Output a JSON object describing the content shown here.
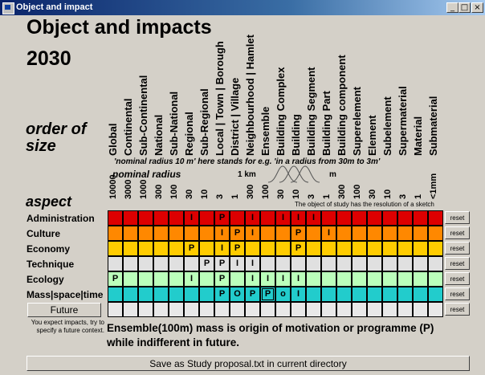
{
  "window": {
    "title": "Object and impact",
    "min": "_",
    "max": "□",
    "close": "×"
  },
  "heading": "Object and impacts",
  "year": "2030",
  "order_of_size_line1": "order of",
  "order_of_size_line2": "size",
  "aspect_label": "aspect",
  "scale_names": [
    "Global",
    "Continental",
    "Sub-Continental",
    "National",
    "Sub-National",
    "Regional",
    "Sub-Regional",
    "Local | Town | Borough",
    "District | Village",
    "Neighbourhood | Hamlet",
    "Ensemble",
    "Building Complex",
    "Building",
    "Building Segment",
    "Building Part",
    "Building component",
    "Superelement",
    "Element",
    "Subelement",
    "Supermaterial",
    "Material",
    "Submaterial"
  ],
  "note": "'nominal radius 10 m' here stands for e.g. 'in a radius from 30m to 3m'",
  "nominal_radius_label": "nominal radius",
  "unit_km": "1 km",
  "unit_m": "m",
  "radii": [
    "10000",
    "3000",
    "1000",
    "300",
    "100",
    "30",
    "10",
    "3",
    "1",
    "300",
    "100",
    "30",
    "10",
    "3",
    "1",
    "300",
    "100",
    "30",
    "10",
    "3",
    "1",
    "<1mm"
  ],
  "sketch_note": "The object of study has the resolution of a sketch",
  "colors": {
    "Administration": "#dd0000",
    "Culture": "#ff8800",
    "Economy": "#ffcc00",
    "Technique": "#e0e0e0",
    "Ecology": "#bbffbb",
    "Mass|space|time": "#22cccc",
    "blank": "#e8e8e8"
  },
  "rows": [
    {
      "label": "Administration",
      "marks": {
        "5": "I",
        "7": "P",
        "9": "I",
        "11": "I",
        "12": "I",
        "13": "I"
      },
      "reset": "reset"
    },
    {
      "label": "Culture",
      "marks": {
        "7": "I",
        "8": "P",
        "9": "I",
        "12": "P",
        "14": "I"
      },
      "reset": "reset"
    },
    {
      "label": "Economy",
      "marks": {
        "5": "P",
        "7": "I",
        "8": "P",
        "12": "P"
      },
      "reset": "reset"
    },
    {
      "label": "Technique",
      "marks": {
        "6": "P",
        "7": "P",
        "8": "I",
        "9": "I"
      },
      "reset": "reset"
    },
    {
      "label": "Ecology",
      "marks": {
        "0": "P",
        "5": "I",
        "7": "P",
        "9": "I",
        "10": "I",
        "11": "I",
        "12": "I"
      },
      "reset": "reset"
    },
    {
      "label": "Mass|space|time",
      "marks": {
        "7": "P",
        "8": "O",
        "9": "P",
        "10": "P",
        "11": "o",
        "12": "I"
      },
      "selected": 10,
      "reset": "reset"
    },
    {
      "label": "",
      "marks": {},
      "reset": "reset"
    }
  ],
  "future_button": "Future",
  "future_hint": "You expect impacts, try to specify a future context.",
  "message": "Ensemble(100m) mass is origin of motivation or programme (P) while indifferent in future.",
  "save_button": "Save as Study proposal.txt in current directory"
}
